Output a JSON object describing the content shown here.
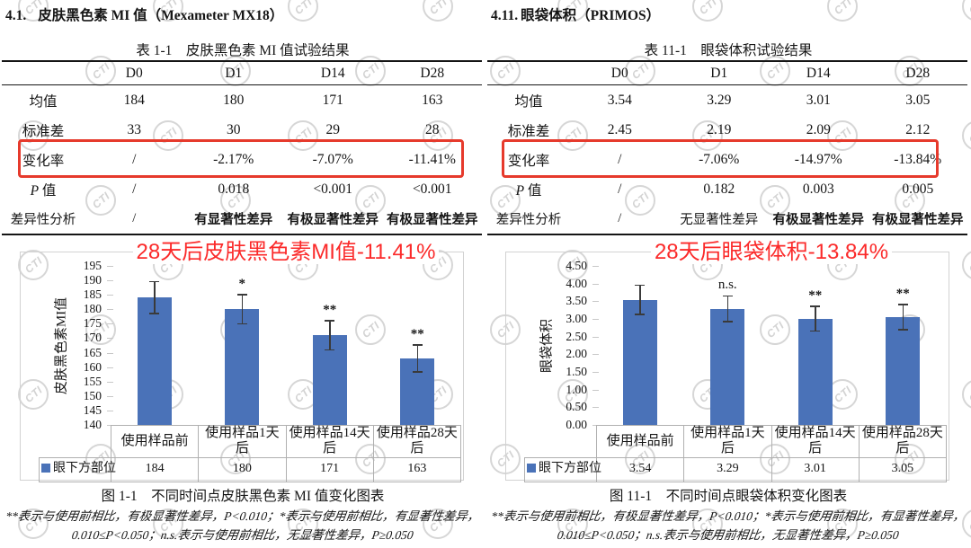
{
  "watermark": {
    "text": "CTI"
  },
  "panels": [
    {
      "heading_no": "4.1.",
      "heading_title": "皮肤黑色素 MI 值（Mexameter MX18）",
      "table_title": "表 1-1　皮肤黑色素 MI 值试验结果",
      "col_headers": [
        "D0",
        "D1",
        "D14",
        "D28"
      ],
      "rows": [
        {
          "label": "均值",
          "values": [
            "184",
            "180",
            "171",
            "163"
          ]
        },
        {
          "label": "标准差",
          "values": [
            "33",
            "30",
            "29",
            "28"
          ]
        },
        {
          "label": "变化率",
          "values": [
            "/",
            "-2.17%",
            "-7.07%",
            "-11.41%"
          ]
        },
        {
          "label": "P 值",
          "values": [
            "/",
            "0.018",
            "<0.001",
            "<0.001"
          ]
        },
        {
          "label": "差异性分析",
          "values": [
            "/",
            "有显著性差异",
            "有极显著性差异",
            "有极显著性差异"
          ]
        }
      ],
      "caption": "图 1-1　不同时间点皮肤黑色素 MI 值变化图表",
      "footnote_line1": "**表示与使用前相比，有极显著性差异，P<0.010；*表示与使用前相比，有显著性差异，",
      "footnote_line2": "0.010≤P<0.050；n.s.表示与使用前相比，无显著性差异，P≥0.050"
    },
    {
      "heading_no": "4.11.",
      "heading_title": "眼袋体积（PRIMOS）",
      "table_title": "表 11-1　眼袋体积试验结果",
      "col_headers": [
        "D0",
        "D1",
        "D14",
        "D28"
      ],
      "rows": [
        {
          "label": "均值",
          "values": [
            "3.54",
            "3.29",
            "3.01",
            "3.05"
          ]
        },
        {
          "label": "标准差",
          "values": [
            "2.45",
            "2.19",
            "2.09",
            "2.12"
          ]
        },
        {
          "label": "变化率",
          "values": [
            "/",
            "-7.06%",
            "-14.97%",
            "-13.84%"
          ]
        },
        {
          "label": "P 值",
          "values": [
            "/",
            "0.182",
            "0.003",
            "0.005"
          ]
        },
        {
          "label": "差异性分析",
          "values": [
            "/",
            "无显著性差异",
            "有极显著性差异",
            "有极显著性差异"
          ]
        }
      ],
      "caption": "图 11-1　不同时间点眼袋体积变化图表",
      "footnote_line1": "**表示与使用前相比，有极显著性差异，P<0.010；*表示与使用前相比，有显著性差异，",
      "footnote_line2": "0.010≤P<0.050；n.s.表示与使用前相比，无显著性差异，P≥0.050"
    }
  ],
  "chart_data": [
    {
      "type": "bar",
      "title": "28天后皮肤黑色素MI值-11.41%",
      "title_color": "#fb2a2a",
      "ylabel": "皮肤黑色素MI值",
      "categories": [
        "使用样品前",
        "使用样品1天后",
        "使用样品14天后",
        "使用样品28天后"
      ],
      "series": [
        {
          "name": "眼下方部位",
          "values": [
            184,
            180,
            171,
            163
          ]
        }
      ],
      "error_bars": [
        5.5,
        5.0,
        5.0,
        4.7
      ],
      "sig_marks": [
        "",
        "*",
        "**",
        "**"
      ],
      "ylim": [
        140,
        195
      ],
      "ytick_step": 5,
      "ytick_decimals": 0,
      "bar_color": "#4a72b8",
      "legend_label": "眼下方部位",
      "table_values": [
        "184",
        "180",
        "171",
        "163"
      ]
    },
    {
      "type": "bar",
      "title": "28天后眼袋体积-13.84%",
      "title_color": "#fb2a2a",
      "ylabel": "眼袋体积",
      "categories": [
        "使用样品前",
        "使用样品1天后",
        "使用样品14天后",
        "使用样品28天后"
      ],
      "series": [
        {
          "name": "眼下方部位",
          "values": [
            3.54,
            3.29,
            3.01,
            3.05
          ]
        }
      ],
      "error_bars": [
        0.41,
        0.36,
        0.35,
        0.36
      ],
      "sig_marks": [
        "",
        "n.s.",
        "**",
        "**"
      ],
      "ylim": [
        0,
        4.5
      ],
      "ytick_step": 0.5,
      "ytick_decimals": 2,
      "bar_color": "#4a72b8",
      "legend_label": "眼下方部位",
      "table_values": [
        "3.54",
        "3.29",
        "3.01",
        "3.05"
      ]
    }
  ]
}
